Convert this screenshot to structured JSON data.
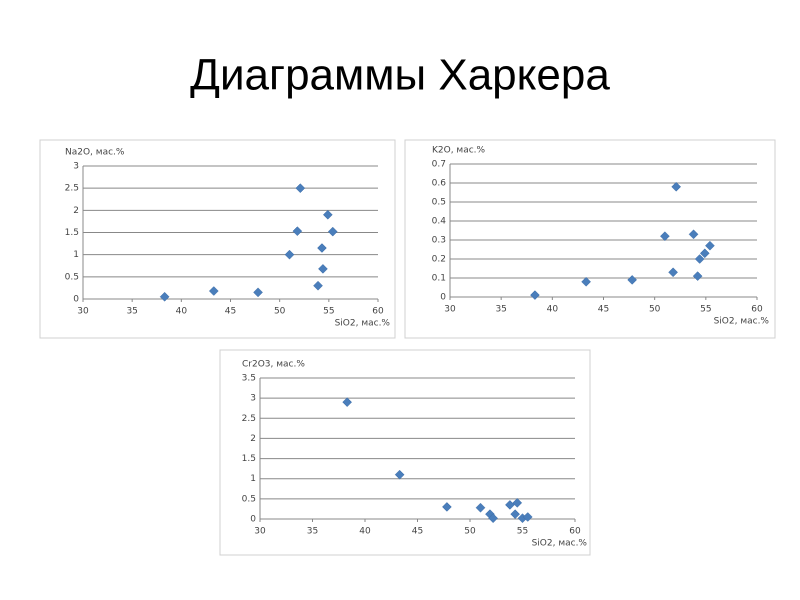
{
  "title": "Диаграммы Харкера",
  "chart_data": [
    {
      "type": "scatter",
      "x_label": "SiO2, мас.%",
      "y_label": "Na2O, мас.%",
      "color": "#4a7ebb",
      "grid": true,
      "x": [
        38.3,
        43.3,
        47.8,
        51.0,
        51.8,
        52.1,
        53.9,
        54.3,
        54.4,
        54.9,
        55.4
      ],
      "values": [
        0.05,
        0.18,
        0.15,
        1.0,
        1.53,
        2.5,
        0.3,
        1.15,
        0.68,
        1.9,
        1.52
      ],
      "xlim": [
        30,
        60
      ],
      "xticks": [
        30,
        35,
        40,
        45,
        50,
        55,
        60
      ],
      "ylim": [
        0,
        3
      ],
      "yticks": [
        0,
        0.5,
        1,
        1.5,
        2,
        2.5,
        3
      ]
    },
    {
      "type": "scatter",
      "x_label": "SiO2, мас.%",
      "y_label": "K2O, мас.%",
      "color": "#4a7ebb",
      "grid": true,
      "x": [
        38.3,
        43.3,
        47.8,
        51.0,
        51.8,
        52.1,
        53.8,
        54.2,
        54.4,
        54.9,
        55.4
      ],
      "values": [
        0.01,
        0.08,
        0.09,
        0.32,
        0.13,
        0.58,
        0.33,
        0.11,
        0.2,
        0.23,
        0.27
      ],
      "xlim": [
        30,
        60
      ],
      "xticks": [
        30,
        35,
        40,
        45,
        50,
        55,
        60
      ],
      "ylim": [
        0,
        0.7
      ],
      "yticks": [
        0,
        0.1,
        0.2,
        0.3,
        0.4,
        0.5,
        0.6,
        0.7
      ]
    },
    {
      "type": "scatter",
      "x_label": "SiO2, мас.%",
      "y_label": "Cr2O3, мас.%",
      "color": "#4a7ebb",
      "grid": true,
      "x": [
        38.3,
        43.3,
        47.8,
        51.0,
        51.9,
        52.2,
        53.8,
        54.3,
        54.5,
        55.0,
        55.5
      ],
      "values": [
        2.9,
        1.1,
        0.3,
        0.28,
        0.12,
        0.02,
        0.35,
        0.12,
        0.4,
        0.02,
        0.05
      ],
      "xlim": [
        30,
        60
      ],
      "xticks": [
        30,
        35,
        40,
        45,
        50,
        55,
        60
      ],
      "ylim": [
        0,
        3.5
      ],
      "yticks": [
        0,
        0.5,
        1,
        1.5,
        2,
        2.5,
        3,
        3.5
      ]
    }
  ]
}
